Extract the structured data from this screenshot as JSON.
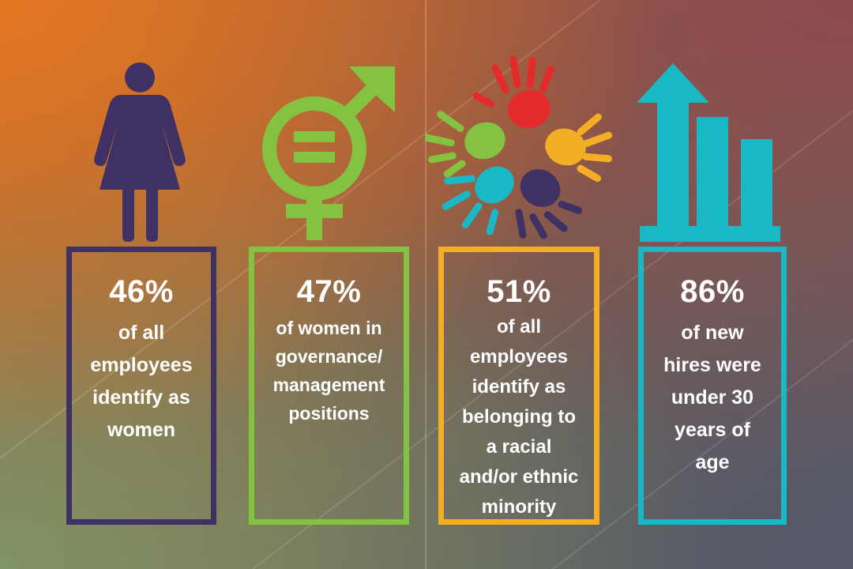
{
  "stats": [
    {
      "value": "46%",
      "description": "of all\nemployees\nidentify as\nwomen",
      "color": "#3f3163",
      "icon": "woman-icon"
    },
    {
      "value": "47%",
      "description": "of women in\ngovernance/\nmanagement\npositions",
      "color": "#84c342",
      "icon": "gender-equality-icon"
    },
    {
      "value": "51%",
      "description": "of all\nemployees\nidentify as\nbelonging to\na racial\nand/or ethnic\nminority",
      "color": "#f4ae25",
      "icon": "diverse-hands-icon"
    },
    {
      "value": "86%",
      "description": "of new\nhires were\nunder 30\nyears of\nage",
      "color": "#1ab8c4",
      "icon": "growth-bar-chart-icon"
    }
  ]
}
